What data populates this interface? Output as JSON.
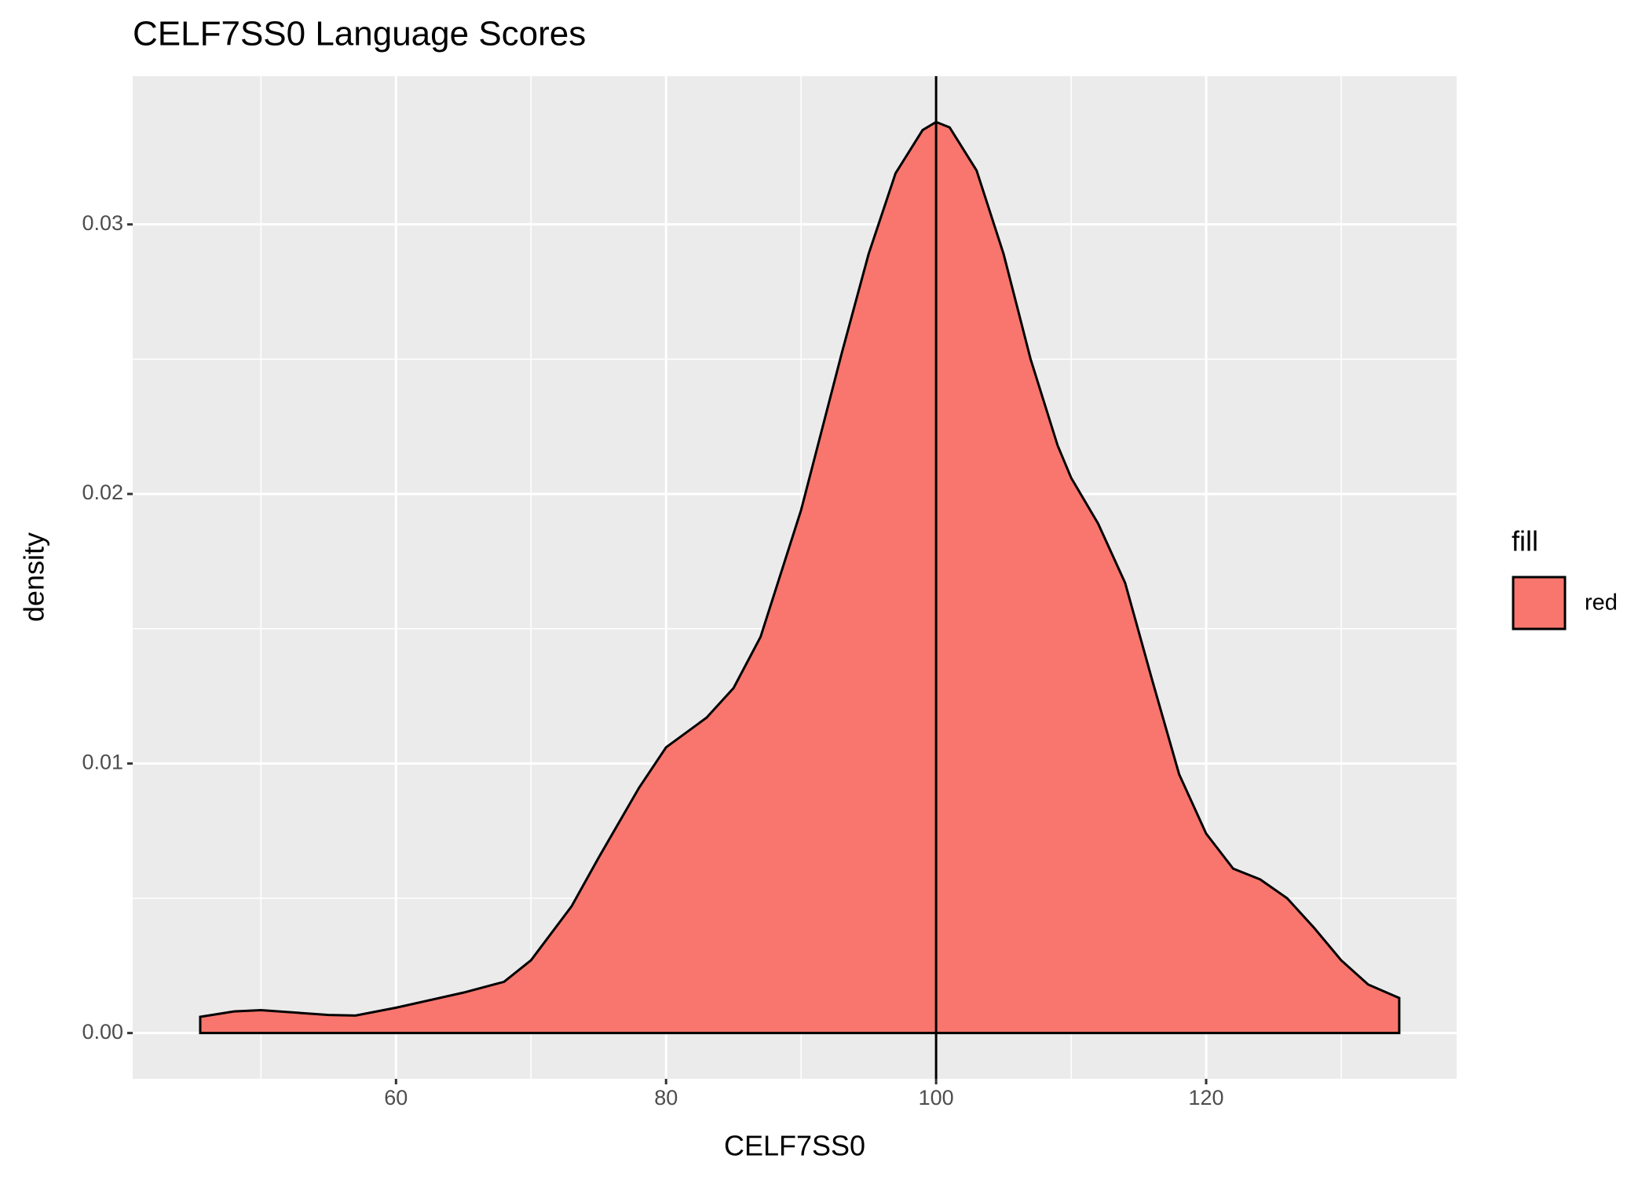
{
  "chart_data": {
    "type": "density",
    "title": "CELF7SS0 Language Scores",
    "x_label": "CELF7SS0",
    "y_label": "density",
    "legend_title": "fill",
    "x": [
      45.5,
      48,
      50,
      55,
      57,
      60,
      65,
      68,
      70,
      73,
      75,
      78,
      80,
      83,
      85,
      87,
      90,
      93,
      95,
      97,
      99,
      100,
      101,
      103,
      105,
      107,
      109,
      110,
      112,
      114,
      116,
      118,
      120,
      122,
      124,
      126,
      128,
      130,
      132,
      134.3
    ],
    "series": [
      {
        "name": "red",
        "color": "#F8766D",
        "values": [
          0.0006,
          0.0008,
          0.00085,
          0.00067,
          0.00065,
          0.00094,
          0.0015,
          0.0019,
          0.0027,
          0.0047,
          0.0065,
          0.0091,
          0.0106,
          0.0117,
          0.0128,
          0.0147,
          0.0194,
          0.0252,
          0.0289,
          0.0319,
          0.0335,
          0.0338,
          0.0336,
          0.032,
          0.0289,
          0.025,
          0.0218,
          0.0206,
          0.0189,
          0.0167,
          0.0131,
          0.0096,
          0.0074,
          0.0061,
          0.0057,
          0.005,
          0.0039,
          0.0027,
          0.0018,
          0.0013
        ]
      }
    ],
    "vline": 100,
    "xlim": [
      40.5,
      138.55
    ],
    "ylim": [
      -0.0017,
      0.0355
    ],
    "xticks": [
      60,
      80,
      100,
      120
    ],
    "yticks": [
      {
        "value": 0,
        "label": "0.00"
      },
      0.01,
      0.02,
      0.03
    ],
    "x_minor_ticks": [
      50,
      70,
      90,
      110,
      130
    ],
    "y_minor_ticks": [
      0.005,
      0.015,
      0.025
    ],
    "grid": true
  }
}
